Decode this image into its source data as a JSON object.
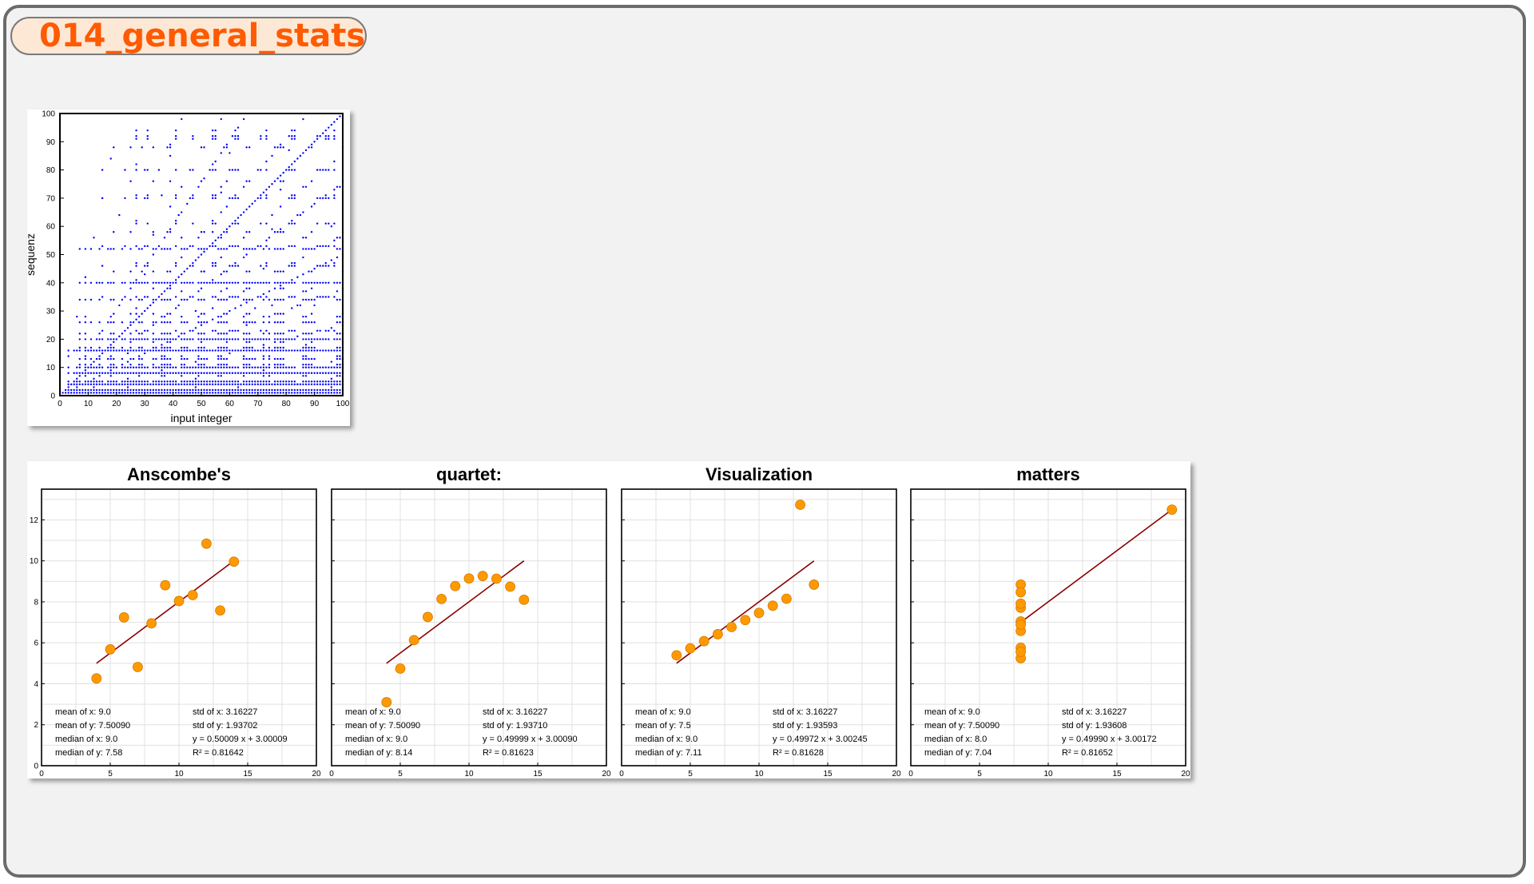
{
  "page": {
    "title": "014_general_stats"
  },
  "colors": {
    "title": "#ff5a00",
    "scatter_points": "#0000ff",
    "quartet_points": "#ff9900",
    "fit_line": "#8b0000"
  },
  "chart_data": [
    {
      "type": "scatter",
      "xlabel": "input integer",
      "ylabel": "sequenz",
      "xlim": [
        0,
        100
      ],
      "ylim": [
        0,
        100
      ],
      "xticks": [
        0,
        10,
        20,
        30,
        40,
        50,
        60,
        70,
        80,
        90,
        100
      ],
      "yticks": [
        0,
        10,
        20,
        30,
        40,
        50,
        60,
        70,
        80,
        90,
        100
      ],
      "grid": false,
      "note": "Dense pattern of small blue points over input integers 1-100"
    },
    {
      "type": "scatter",
      "title": "Anscombe's",
      "xlim": [
        0,
        20
      ],
      "ylim": [
        0,
        13.5
      ],
      "xticks": [
        0,
        5,
        10,
        15,
        20
      ],
      "yticks": [
        0,
        2,
        4,
        6,
        8,
        10,
        12
      ],
      "grid": true,
      "x": [
        10,
        8,
        13,
        9,
        11,
        14,
        6,
        4,
        12,
        7,
        5
      ],
      "y": [
        8.04,
        6.95,
        7.58,
        8.81,
        8.33,
        9.96,
        7.24,
        4.26,
        10.84,
        4.82,
        5.68
      ],
      "fit": {
        "slope": 0.50009,
        "intercept": 3.00009,
        "x_range": [
          4,
          14
        ]
      },
      "stats": [
        [
          "mean of x: 9.0",
          "std of x: 3.16227"
        ],
        [
          "mean of y: 7.50090",
          "std of y: 1.93702"
        ],
        [
          "median of x: 9.0",
          "y = 0.50009 x + 3.00009"
        ],
        [
          "median of y: 7.58",
          "R² = 0.81642"
        ]
      ]
    },
    {
      "type": "scatter",
      "title": "quartet:",
      "xlim": [
        0,
        20
      ],
      "ylim": [
        0,
        13.5
      ],
      "xticks": [
        0,
        5,
        10,
        15,
        20
      ],
      "yticks": [
        0,
        2,
        4,
        6,
        8,
        10,
        12
      ],
      "grid": true,
      "x": [
        10,
        8,
        13,
        9,
        11,
        14,
        6,
        4,
        12,
        7,
        5
      ],
      "y": [
        9.14,
        8.14,
        8.74,
        8.77,
        9.26,
        8.1,
        6.13,
        3.1,
        9.13,
        7.26,
        4.74
      ],
      "fit": {
        "slope": 0.49999,
        "intercept": 3.0009,
        "x_range": [
          4,
          14
        ]
      },
      "stats": [
        [
          "mean of x: 9.0",
          "std of x: 3.16227"
        ],
        [
          "mean of y: 7.50090",
          "std of y: 1.93710"
        ],
        [
          "median of x: 9.0",
          "y = 0.49999 x + 3.00090"
        ],
        [
          "median of y: 8.14",
          "R² = 0.81623"
        ]
      ]
    },
    {
      "type": "scatter",
      "title": "Visualization",
      "xlim": [
        0,
        20
      ],
      "ylim": [
        0,
        13.5
      ],
      "xticks": [
        0,
        5,
        10,
        15,
        20
      ],
      "yticks": [
        0,
        2,
        4,
        6,
        8,
        10,
        12
      ],
      "grid": true,
      "x": [
        10,
        8,
        13,
        9,
        11,
        14,
        6,
        4,
        12,
        7,
        5
      ],
      "y": [
        7.46,
        6.77,
        12.74,
        7.11,
        7.81,
        8.84,
        6.08,
        5.39,
        8.15,
        6.42,
        5.73
      ],
      "fit": {
        "slope": 0.49972,
        "intercept": 3.00245,
        "x_range": [
          4,
          14
        ]
      },
      "stats": [
        [
          "mean of x: 9.0",
          "std of x: 3.16227"
        ],
        [
          "mean of y: 7.5",
          "std of y: 1.93593"
        ],
        [
          "median of x: 9.0",
          "y = 0.49972 x + 3.00245"
        ],
        [
          "median of y: 7.11",
          "R² = 0.81628"
        ]
      ]
    },
    {
      "type": "scatter",
      "title": "matters",
      "xlim": [
        0,
        20
      ],
      "ylim": [
        0,
        13.5
      ],
      "xticks": [
        0,
        5,
        10,
        15,
        20
      ],
      "yticks": [
        0,
        2,
        4,
        6,
        8,
        10,
        12
      ],
      "grid": true,
      "x": [
        8,
        8,
        8,
        8,
        8,
        8,
        8,
        19,
        8,
        8,
        8
      ],
      "y": [
        6.58,
        5.76,
        7.71,
        8.84,
        8.47,
        7.04,
        5.25,
        12.5,
        5.56,
        7.91,
        6.89
      ],
      "fit": {
        "slope": 0.4999,
        "intercept": 3.00172,
        "x_range": [
          8,
          19
        ]
      },
      "stats": [
        [
          "mean of x: 9.0",
          "std of x: 3.16227"
        ],
        [
          "mean of y: 7.50090",
          "std of y: 1.93608"
        ],
        [
          "median of x: 8.0",
          "y = 0.49990 x + 3.00172"
        ],
        [
          "median of y: 7.04",
          "R² = 0.81652"
        ]
      ]
    }
  ]
}
